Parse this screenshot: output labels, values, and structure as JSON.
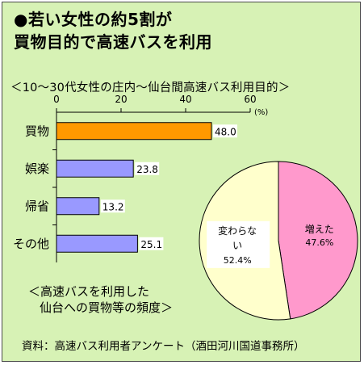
{
  "headline": {
    "line1": "●若い女性の約5割が",
    "line2": "買物目的で高速バスを利用"
  },
  "chart_data": [
    {
      "type": "bar",
      "orientation": "horizontal",
      "title": "＜10～30代女性の庄内～仙台間高速バス利用目的＞",
      "unit": "(%)",
      "categories": [
        "買物",
        "娯楽",
        "帰省",
        "その他"
      ],
      "values": [
        48.0,
        23.8,
        13.2,
        25.1
      ],
      "value_labels": [
        "48.0",
        "23.8",
        "13.2",
        "25.1"
      ],
      "xlim": [
        0,
        60
      ],
      "xticks": [
        "0",
        "20",
        "40",
        "60"
      ],
      "bar_colors": [
        "#ff9900",
        "#9999ff",
        "#9999ff",
        "#9999ff"
      ],
      "grid": false
    },
    {
      "type": "pie",
      "caption_line1": "＜高速バスを利用した",
      "caption_line2": "仙台への買物等の頻度＞",
      "slices": [
        {
          "label": "増えた",
          "value": 47.6,
          "value_label": "47.6%",
          "color": "#ff99cc"
        },
        {
          "label": "変わらない",
          "value": 52.4,
          "value_label": "52.4%",
          "color": "#ffffcc"
        }
      ]
    }
  ],
  "source": "資料：高速バス利用者アンケート（酒田河川国道事務所）"
}
